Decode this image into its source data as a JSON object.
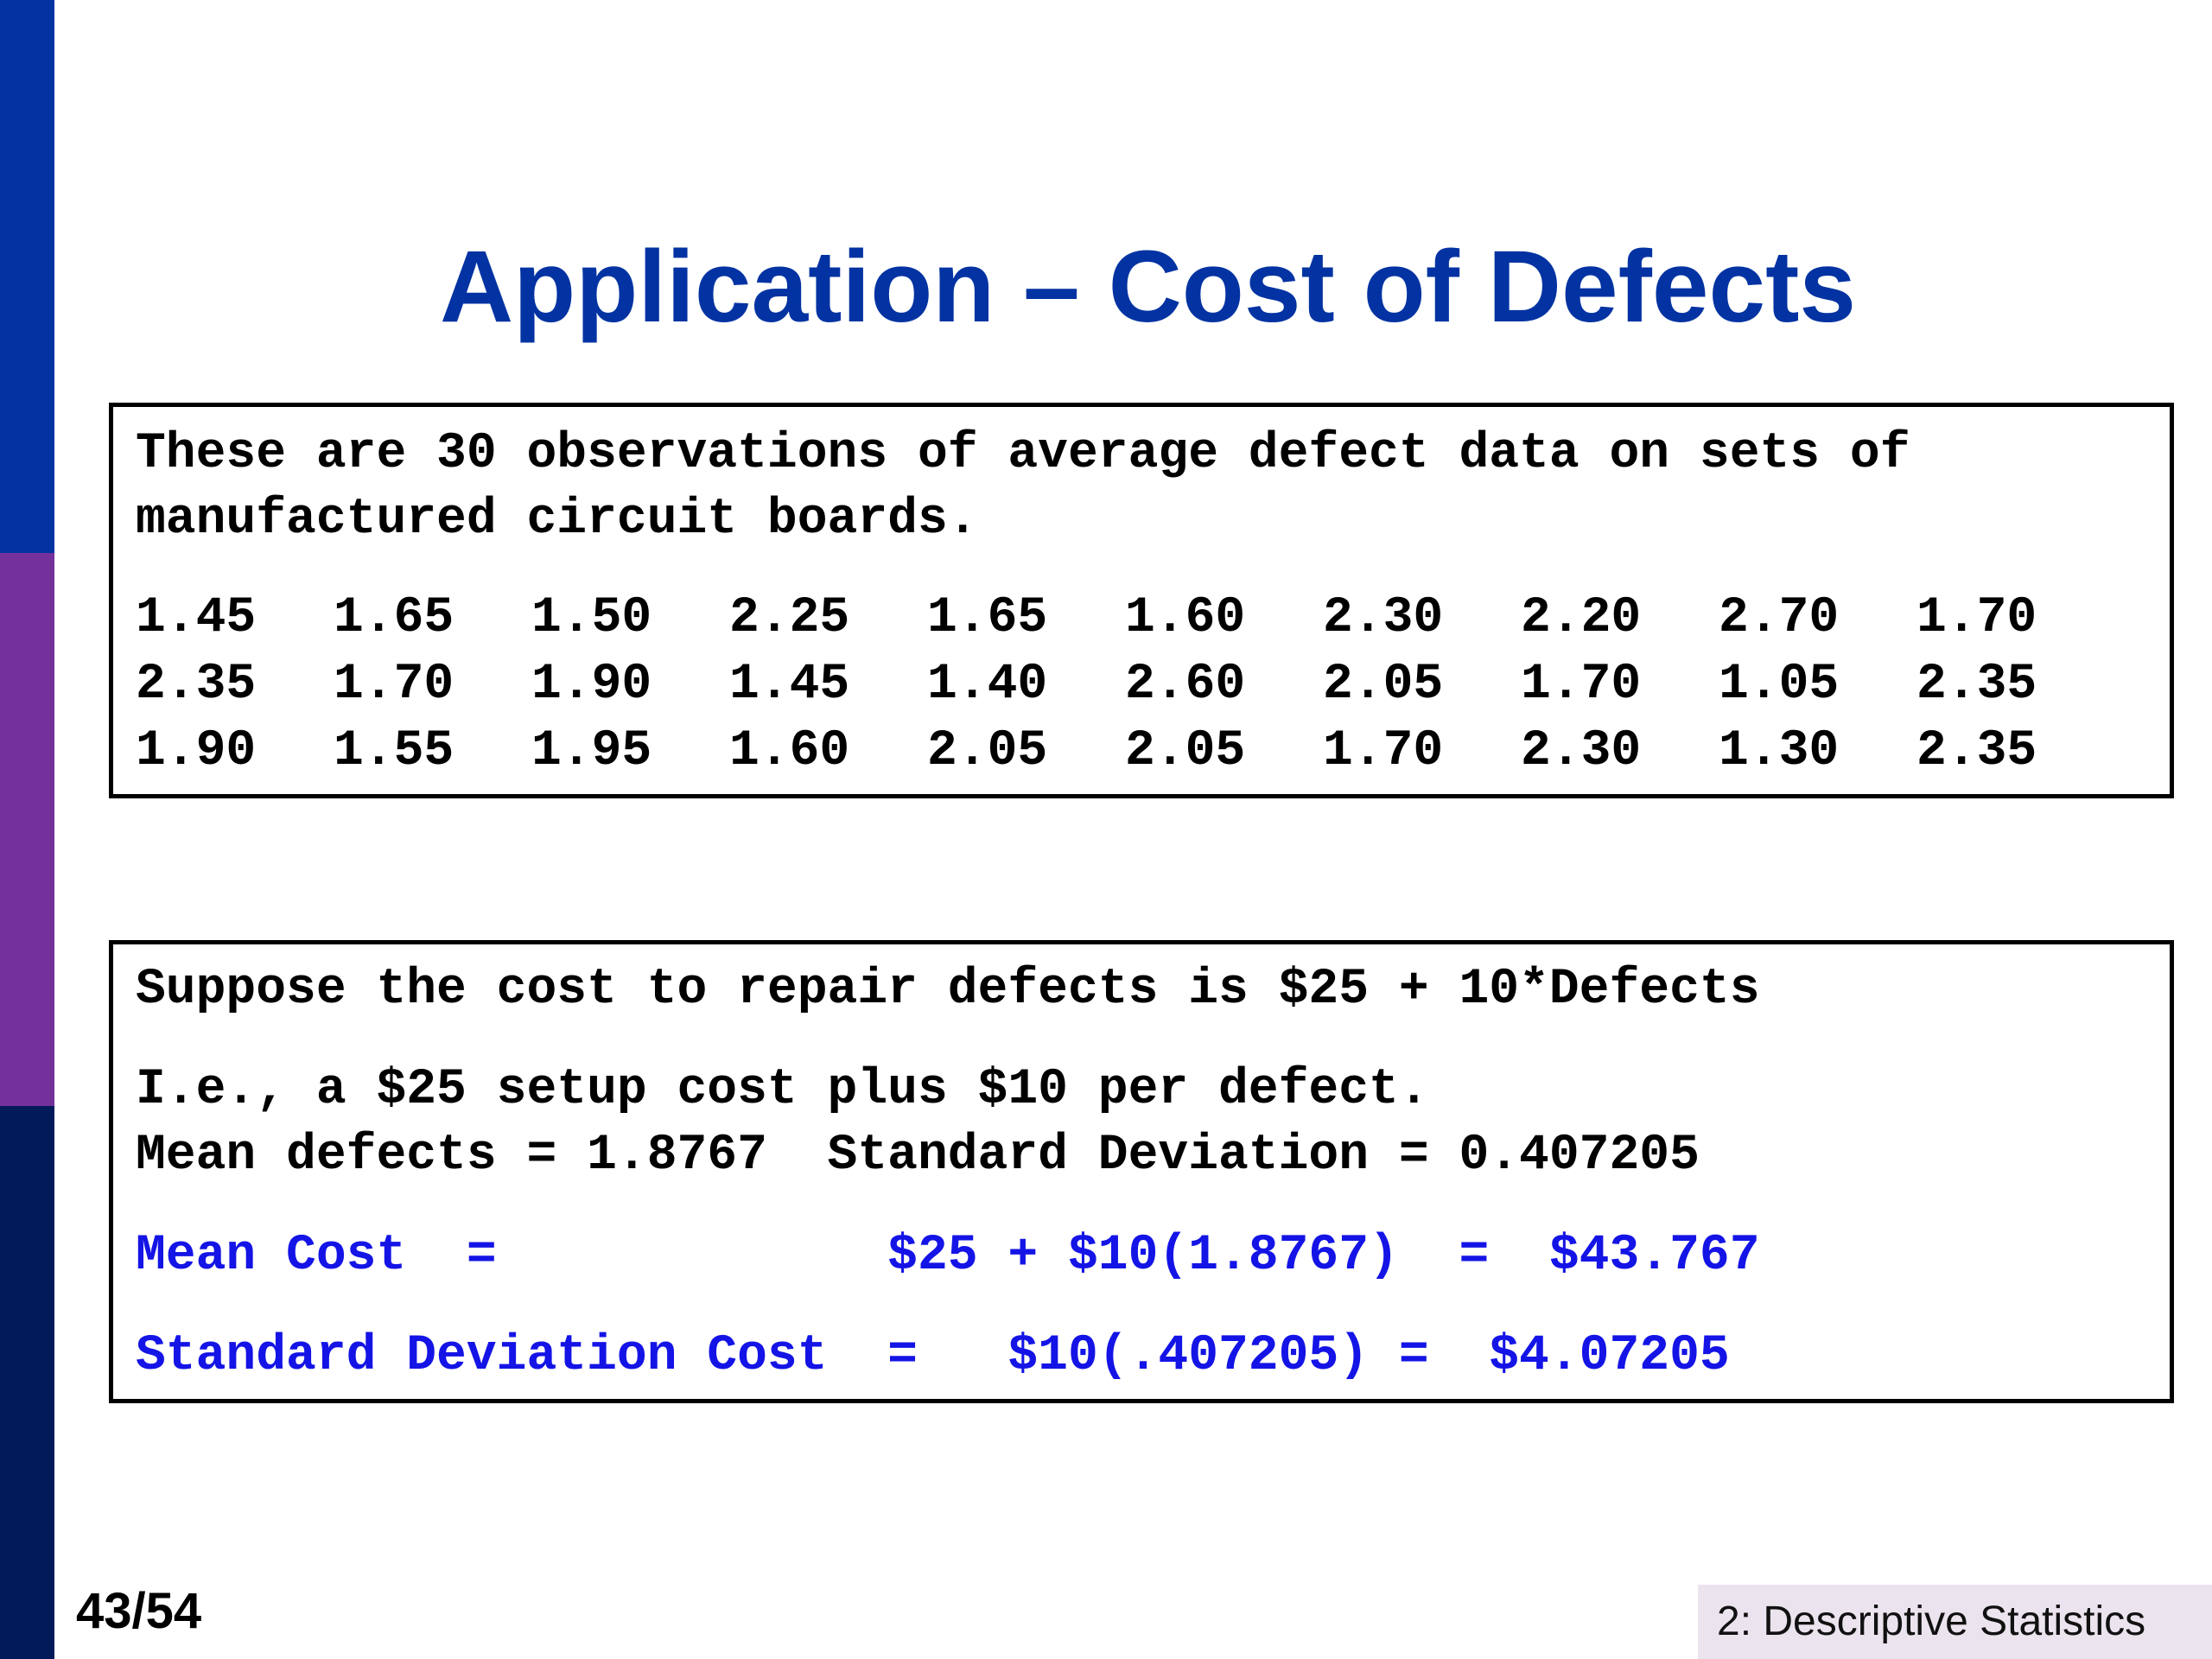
{
  "slide": {
    "title": "Application – Cost of Defects",
    "page_number": "43/54",
    "section_label": "2: Descriptive Statistics"
  },
  "colors": {
    "title": "#0333a2",
    "highlight_text": "#1414e6",
    "sidebar_top": "#0333a2",
    "sidebar_middle": "#74319c",
    "sidebar_bottom": "#021a5a"
  },
  "data_box": {
    "intro_line1": "These are 30 observations of average defect data on sets of",
    "intro_line2": "manufactured circuit boards.",
    "rows": [
      [
        "1.45",
        "1.65",
        "1.50",
        "2.25",
        "1.65",
        "1.60",
        "2.30",
        "2.20",
        "2.70",
        "1.70"
      ],
      [
        "2.35",
        "1.70",
        "1.90",
        "1.45",
        "1.40",
        "2.60",
        "2.05",
        "1.70",
        "1.05",
        "2.35"
      ],
      [
        "1.90",
        "1.55",
        "1.95",
        "1.60",
        "2.05",
        "2.05",
        "1.70",
        "2.30",
        "1.30",
        "2.35"
      ]
    ]
  },
  "cost_box": {
    "line1": "Suppose the cost to repair defects is $25 + 10*Defects",
    "line2": "I.e., a $25 setup cost plus $10 per defect.",
    "line3": "Mean defects = 1.8767  Standard Deviation = 0.407205",
    "mean_cost": "Mean Cost  =             $25 + $10(1.8767)  =  $43.767",
    "sd_cost": "Standard Deviation Cost  =   $10(.407205) =  $4.07205"
  }
}
